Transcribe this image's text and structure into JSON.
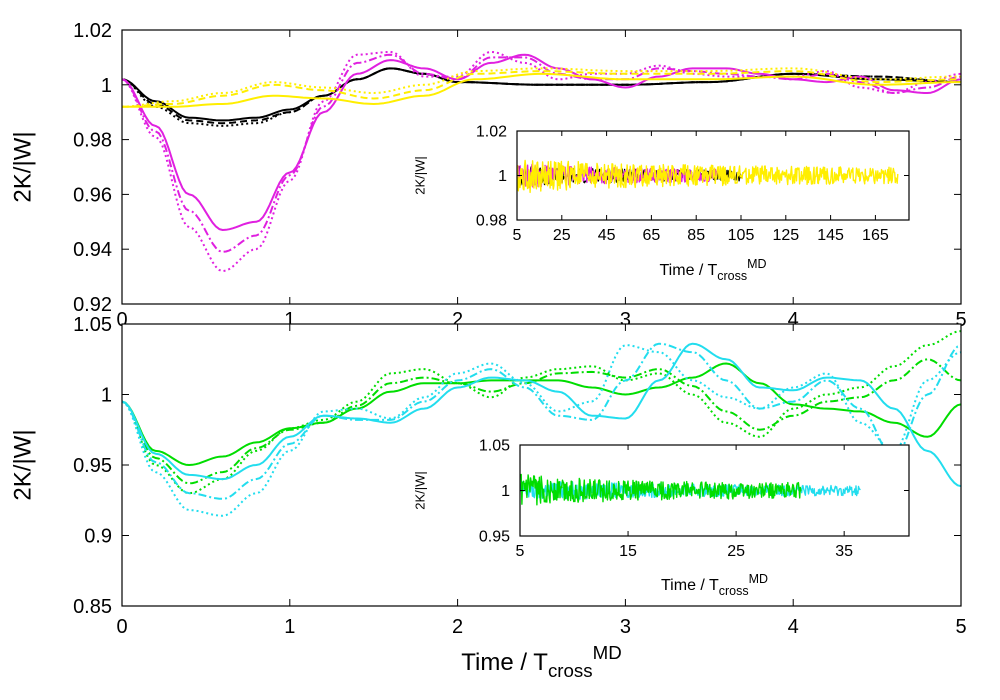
{
  "chart_data": [
    {
      "type": "line",
      "panel": "top-main",
      "ylabel": "2K/|W|",
      "xlim": [
        0,
        5
      ],
      "ylim": [
        0.92,
        1.02
      ],
      "xticks": [
        "0",
        "1",
        "2",
        "3",
        "4",
        "5"
      ],
      "yticks": [
        "0.92",
        "0.94",
        "0.96",
        "0.98",
        "1",
        "1.02"
      ],
      "series": [
        {
          "color": "#000000",
          "style": "solid",
          "x": [
            0,
            0.2,
            0.4,
            0.6,
            0.8,
            1.0,
            1.2,
            1.4,
            1.6,
            1.8,
            2.0,
            2.5,
            3.0,
            3.5,
            4.0,
            4.5,
            5.0
          ],
          "y": [
            1.002,
            0.994,
            0.988,
            0.987,
            0.988,
            0.991,
            0.996,
            1.002,
            1.006,
            1.004,
            1.001,
            1.0,
            1.0,
            1.001,
            1.004,
            1.002,
            1.001
          ]
        },
        {
          "color": "#000000",
          "style": "dashed",
          "x": [
            0,
            0.2,
            0.4,
            0.6,
            0.8,
            1.0,
            1.2,
            1.4,
            1.6,
            1.8,
            2.0,
            2.5,
            3.0,
            3.5,
            4.0,
            4.5,
            5.0
          ],
          "y": [
            1.002,
            0.993,
            0.987,
            0.986,
            0.987,
            0.99,
            0.996,
            1.002,
            1.006,
            1.004,
            1.001,
            1.0,
            1.0,
            1.001,
            1.004,
            1.003,
            1.001
          ]
        },
        {
          "color": "#000000",
          "style": "dotted",
          "x": [
            0,
            0.2,
            0.4,
            0.6,
            0.8,
            1.0,
            1.2,
            1.4,
            1.6,
            1.8,
            2.0,
            2.5,
            3.0,
            3.5,
            4.0,
            4.5,
            5.0
          ],
          "y": [
            1.002,
            0.992,
            0.986,
            0.985,
            0.986,
            0.99,
            0.996,
            1.002,
            1.006,
            1.004,
            1.001,
            1.0,
            1.0,
            1.001,
            1.004,
            1.003,
            1.001
          ]
        },
        {
          "color": "#e020e0",
          "style": "solid",
          "x": [
            0,
            0.2,
            0.4,
            0.6,
            0.8,
            1.0,
            1.2,
            1.4,
            1.6,
            1.8,
            2.0,
            2.2,
            2.4,
            2.6,
            2.8,
            3.0,
            3.2,
            3.4,
            3.6,
            3.8,
            4.0,
            4.2,
            4.4,
            4.6,
            4.8,
            5.0
          ],
          "y": [
            1.002,
            0.985,
            0.96,
            0.947,
            0.95,
            0.968,
            0.99,
            1.004,
            1.009,
            1.006,
            1.002,
            1.008,
            1.011,
            1.006,
            1.002,
            0.999,
            1.003,
            1.006,
            1.006,
            1.004,
            1.002,
            1.001,
            1.003,
            0.998,
            0.997,
            1.002
          ]
        },
        {
          "color": "#e020e0",
          "style": "dashdot",
          "x": [
            0,
            0.2,
            0.4,
            0.6,
            0.8,
            1.0,
            1.2,
            1.4,
            1.6,
            1.8,
            2.0,
            2.2,
            2.4,
            2.6,
            2.8,
            3.0,
            3.2,
            3.4,
            3.6,
            3.8,
            4.0,
            4.2,
            4.4,
            4.6,
            4.8,
            5.0
          ],
          "y": [
            1.002,
            0.983,
            0.954,
            0.939,
            0.945,
            0.967,
            0.992,
            1.008,
            1.011,
            1.004,
            1.002,
            1.01,
            1.01,
            1.004,
            1.002,
            1.002,
            1.006,
            1.005,
            1.004,
            1.003,
            1.002,
            1.004,
            1.001,
            0.997,
            0.999,
            1.003
          ]
        },
        {
          "color": "#e020e0",
          "style": "dotted",
          "x": [
            0,
            0.2,
            0.4,
            0.6,
            0.8,
            1.0,
            1.2,
            1.4,
            1.6,
            1.8,
            2.0,
            2.2,
            2.4,
            2.6,
            2.8,
            3.0,
            3.2,
            3.4,
            3.6,
            3.8,
            4.0,
            4.2,
            4.4,
            4.6,
            4.8,
            5.0
          ],
          "y": [
            1.002,
            0.981,
            0.948,
            0.932,
            0.94,
            0.965,
            0.994,
            1.011,
            1.012,
            1.003,
            1.003,
            1.012,
            1.008,
            1.002,
            1.004,
            1.004,
            1.007,
            1.004,
            1.003,
            1.003,
            1.003,
            1.005,
            0.999,
            0.997,
            1.001,
            1.004
          ]
        },
        {
          "color": "#ffee00",
          "style": "solid",
          "x": [
            0,
            0.3,
            0.6,
            0.9,
            1.2,
            1.5,
            1.8,
            2.1,
            2.5,
            3.0,
            3.5,
            4.0,
            4.5,
            5.0
          ],
          "y": [
            0.992,
            0.992,
            0.993,
            0.996,
            0.995,
            0.993,
            0.996,
            1.002,
            1.004,
            1.002,
            1.002,
            1.003,
            1.0,
            1.001
          ]
        },
        {
          "color": "#ffee00",
          "style": "dashed",
          "x": [
            0,
            0.3,
            0.6,
            0.9,
            1.2,
            1.5,
            1.8,
            2.1,
            2.5,
            3.0,
            3.5,
            4.0,
            4.5,
            5.0
          ],
          "y": [
            0.992,
            0.993,
            0.996,
            1.0,
            0.998,
            0.995,
            0.998,
            1.004,
            1.005,
            1.004,
            1.004,
            1.005,
            1.001,
            1.002
          ]
        },
        {
          "color": "#ffee00",
          "style": "dotted",
          "x": [
            0,
            0.3,
            0.6,
            0.9,
            1.2,
            1.5,
            1.8,
            2.1,
            2.5,
            3.0,
            3.5,
            4.0,
            4.5,
            5.0
          ],
          "y": [
            0.992,
            0.994,
            0.997,
            1.001,
            0.999,
            0.997,
            1.0,
            1.005,
            1.006,
            1.005,
            1.005,
            1.006,
            1.002,
            1.003
          ]
        }
      ]
    },
    {
      "type": "line",
      "panel": "top-inset",
      "xlabel": "Time / T",
      "xlabel_sub": "cross",
      "xlabel_sup": "MD",
      "ylabel": "2K/|W|",
      "xlim": [
        5,
        180
      ],
      "ylim": [
        0.98,
        1.02
      ],
      "xticks": [
        "5",
        "25",
        "45",
        "65",
        "85",
        "105",
        "125",
        "145",
        "165"
      ],
      "yticks": [
        "0.98",
        "1",
        "1.02"
      ],
      "series": [
        {
          "color": "#000000",
          "x_range": [
            5,
            105
          ],
          "amplitude": 0.005
        },
        {
          "color": "#e020e0",
          "x_range": [
            5,
            95
          ],
          "amplitude": 0.006
        },
        {
          "color": "#ffee00",
          "x_range": [
            5,
            175
          ],
          "amplitude": 0.008
        }
      ]
    },
    {
      "type": "line",
      "panel": "bottom-main",
      "xlabel": "Time / T",
      "xlabel_sub": "cross",
      "xlabel_sup": "MD",
      "ylabel": "2K/|W|",
      "xlim": [
        0,
        5
      ],
      "ylim": [
        0.85,
        1.05
      ],
      "xticks": [
        "0",
        "1",
        "2",
        "3",
        "4",
        "5"
      ],
      "yticks": [
        "0.85",
        "0.9",
        "0.95",
        "1",
        "1.05"
      ],
      "series": [
        {
          "color": "#00dd00",
          "style": "solid",
          "x": [
            0,
            0.2,
            0.4,
            0.6,
            0.8,
            1.0,
            1.2,
            1.4,
            1.6,
            1.8,
            2.0,
            2.2,
            2.4,
            2.6,
            2.8,
            3.0,
            3.2,
            3.4,
            3.6,
            3.8,
            4.0,
            4.2,
            4.4,
            4.6,
            4.8,
            5.0
          ],
          "y": [
            0.995,
            0.96,
            0.95,
            0.956,
            0.966,
            0.976,
            0.98,
            0.99,
            1.002,
            1.008,
            1.008,
            1.01,
            1.01,
            1.01,
            1.005,
            1.0,
            1.005,
            1.012,
            1.022,
            1.008,
            0.993,
            0.99,
            0.988,
            0.98,
            0.97,
            0.993
          ]
        },
        {
          "color": "#00dd00",
          "style": "dashdot",
          "x": [
            0,
            0.2,
            0.4,
            0.6,
            0.8,
            1.0,
            1.2,
            1.4,
            1.6,
            1.8,
            2.0,
            2.2,
            2.4,
            2.6,
            2.8,
            3.0,
            3.2,
            3.4,
            3.6,
            3.8,
            4.0,
            4.2,
            4.4,
            4.6,
            4.8,
            5.0
          ],
          "y": [
            0.995,
            0.955,
            0.937,
            0.945,
            0.962,
            0.975,
            0.98,
            0.992,
            1.008,
            1.012,
            1.008,
            1.002,
            1.008,
            1.015,
            1.016,
            1.012,
            1.018,
            1.006,
            0.988,
            0.975,
            0.985,
            0.995,
            0.998,
            1.01,
            1.025,
            1.01
          ]
        },
        {
          "color": "#00dd00",
          "style": "dotted",
          "x": [
            0,
            0.2,
            0.4,
            0.6,
            0.8,
            1.0,
            1.2,
            1.4,
            1.6,
            1.8,
            2.0,
            2.2,
            2.4,
            2.6,
            2.8,
            3.0,
            3.2,
            3.4,
            3.6,
            3.8,
            4.0,
            4.2,
            4.4,
            4.6,
            4.8,
            5.0
          ],
          "y": [
            0.995,
            0.95,
            0.93,
            0.94,
            0.96,
            0.976,
            0.982,
            0.995,
            1.015,
            1.018,
            1.008,
            0.998,
            1.012,
            1.018,
            1.02,
            1.01,
            1.015,
            1.0,
            0.98,
            0.97,
            0.99,
            1.0,
            1.005,
            1.02,
            1.035,
            1.045
          ]
        },
        {
          "color": "#22ddee",
          "style": "solid",
          "x": [
            0,
            0.2,
            0.4,
            0.6,
            0.8,
            1.0,
            1.2,
            1.4,
            1.6,
            1.8,
            2.0,
            2.2,
            2.4,
            2.6,
            2.8,
            3.0,
            3.2,
            3.4,
            3.6,
            3.8,
            4.0,
            4.2,
            4.4,
            4.6,
            4.8,
            5.0
          ],
          "y": [
            0.995,
            0.958,
            0.943,
            0.94,
            0.95,
            0.97,
            0.985,
            0.983,
            0.98,
            0.99,
            1.005,
            1.012,
            1.01,
            1.002,
            0.985,
            0.983,
            1.01,
            1.036,
            1.025,
            1.005,
            1.003,
            1.012,
            1.01,
            0.99,
            0.96,
            0.935
          ]
        },
        {
          "color": "#22ddee",
          "style": "dashdot",
          "x": [
            0,
            0.2,
            0.4,
            0.6,
            0.8,
            1.0,
            1.2,
            1.4,
            1.6,
            1.8,
            2.0,
            2.2,
            2.4,
            2.6,
            2.8,
            3.0,
            3.2,
            3.4,
            3.6,
            3.8,
            4.0,
            4.2,
            4.4,
            4.6,
            4.8,
            5.0
          ],
          "y": [
            0.995,
            0.952,
            0.93,
            0.926,
            0.94,
            0.965,
            0.985,
            0.982,
            0.982,
            0.995,
            1.01,
            1.018,
            1.005,
            0.985,
            0.982,
            1.01,
            1.036,
            1.03,
            1.01,
            0.99,
            0.995,
            1.01,
            0.99,
            0.955,
            1.0,
            1.035
          ]
        },
        {
          "color": "#22ddee",
          "style": "dotted",
          "x": [
            0,
            0.2,
            0.4,
            0.6,
            0.8,
            1.0,
            1.2,
            1.4,
            1.6,
            1.8,
            2.0,
            2.2,
            2.4,
            2.6,
            2.8,
            3.0,
            3.2,
            3.4,
            3.6,
            3.8,
            4.0,
            4.2,
            4.4,
            4.6,
            4.8,
            5.0
          ],
          "y": [
            0.995,
            0.945,
            0.918,
            0.914,
            0.93,
            0.96,
            0.988,
            0.99,
            0.983,
            0.998,
            1.015,
            1.022,
            1.008,
            0.988,
            0.995,
            1.035,
            1.03,
            1.01,
            0.998,
            0.99,
            1.005,
            1.015,
            0.98,
            0.96,
            1.01,
            1.03
          ]
        }
      ]
    },
    {
      "type": "line",
      "panel": "bottom-inset",
      "xlabel": "Time / T",
      "xlabel_sub": "cross",
      "xlabel_sup": "MD",
      "ylabel": "2K/|W|",
      "xlim": [
        5,
        41
      ],
      "ylim": [
        0.95,
        1.05
      ],
      "xticks": [
        "5",
        "15",
        "25",
        "35"
      ],
      "yticks": [
        "0.95",
        "1",
        "1.05"
      ],
      "series": [
        {
          "color": "#22ddee",
          "x_range": [
            5,
            36.5
          ],
          "amplitude": 0.012
        },
        {
          "color": "#00dd00",
          "x_range": [
            5,
            31
          ],
          "amplitude": 0.018
        }
      ]
    }
  ]
}
